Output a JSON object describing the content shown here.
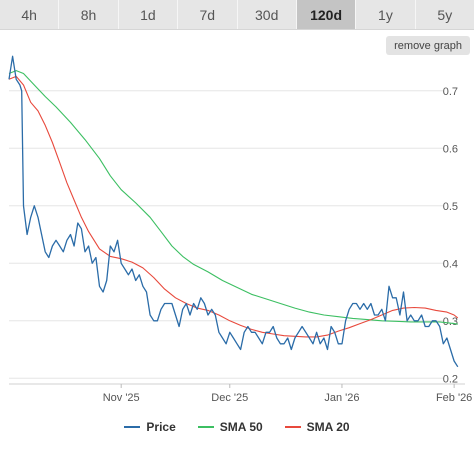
{
  "tabs": [
    {
      "label": "4h",
      "active": false
    },
    {
      "label": "8h",
      "active": false
    },
    {
      "label": "1d",
      "active": false
    },
    {
      "label": "7d",
      "active": false
    },
    {
      "label": "30d",
      "active": false
    },
    {
      "label": "120d",
      "active": true
    },
    {
      "label": "1y",
      "active": false
    },
    {
      "label": "5y",
      "active": false
    }
  ],
  "remove_graph_label": "remove graph",
  "colors": {
    "price": "#2b6ca8",
    "sma50": "#3cbf62",
    "sma20": "#e8493c",
    "grid": "#e6e6e6"
  },
  "chart_data": {
    "type": "line",
    "x_ticks": [
      {
        "t": 76,
        "label": "Nov '25"
      },
      {
        "t": 106,
        "label": "Dec '25"
      },
      {
        "t": 137,
        "label": "Jan '26"
      },
      {
        "t": 168,
        "label": "Feb '26"
      }
    ],
    "y_ticks": [
      0.2,
      0.3,
      0.4,
      0.5,
      0.6,
      0.7
    ],
    "ylim": [
      0.19,
      0.75
    ],
    "xlim": [
      45,
      171
    ],
    "legend_position": "bottom",
    "series": [
      {
        "name": "Price",
        "key": "price",
        "points": [
          [
            45,
            0.72
          ],
          [
            46,
            0.76
          ],
          [
            47,
            0.72
          ],
          [
            48,
            0.71
          ],
          [
            48.5,
            0.7
          ],
          [
            49,
            0.5
          ],
          [
            50,
            0.45
          ],
          [
            51,
            0.48
          ],
          [
            52,
            0.5
          ],
          [
            53,
            0.48
          ],
          [
            54,
            0.45
          ],
          [
            55,
            0.42
          ],
          [
            56,
            0.41
          ],
          [
            57,
            0.43
          ],
          [
            58,
            0.44
          ],
          [
            59,
            0.43
          ],
          [
            60,
            0.42
          ],
          [
            61,
            0.44
          ],
          [
            62,
            0.45
          ],
          [
            63,
            0.43
          ],
          [
            64,
            0.47
          ],
          [
            65,
            0.46
          ],
          [
            66,
            0.42
          ],
          [
            67,
            0.43
          ],
          [
            68,
            0.4
          ],
          [
            69,
            0.41
          ],
          [
            70,
            0.36
          ],
          [
            71,
            0.35
          ],
          [
            72,
            0.37
          ],
          [
            73,
            0.43
          ],
          [
            74,
            0.42
          ],
          [
            75,
            0.44
          ],
          [
            76,
            0.4
          ],
          [
            77,
            0.39
          ],
          [
            78,
            0.38
          ],
          [
            79,
            0.39
          ],
          [
            80,
            0.37
          ],
          [
            81,
            0.38
          ],
          [
            82,
            0.36
          ],
          [
            83,
            0.35
          ],
          [
            84,
            0.31
          ],
          [
            85,
            0.3
          ],
          [
            86,
            0.3
          ],
          [
            87,
            0.32
          ],
          [
            88,
            0.33
          ],
          [
            89,
            0.33
          ],
          [
            90,
            0.33
          ],
          [
            91,
            0.31
          ],
          [
            92,
            0.29
          ],
          [
            93,
            0.32
          ],
          [
            94,
            0.33
          ],
          [
            95,
            0.31
          ],
          [
            96,
            0.33
          ],
          [
            97,
            0.32
          ],
          [
            98,
            0.34
          ],
          [
            99,
            0.33
          ],
          [
            100,
            0.31
          ],
          [
            101,
            0.32
          ],
          [
            102,
            0.31
          ],
          [
            103,
            0.28
          ],
          [
            104,
            0.27
          ],
          [
            105,
            0.26
          ],
          [
            106,
            0.28
          ],
          [
            107,
            0.27
          ],
          [
            108,
            0.26
          ],
          [
            109,
            0.25
          ],
          [
            110,
            0.28
          ],
          [
            111,
            0.29
          ],
          [
            112,
            0.28
          ],
          [
            113,
            0.28
          ],
          [
            114,
            0.27
          ],
          [
            115,
            0.26
          ],
          [
            116,
            0.28
          ],
          [
            117,
            0.28
          ],
          [
            118,
            0.29
          ],
          [
            119,
            0.27
          ],
          [
            120,
            0.26
          ],
          [
            121,
            0.26
          ],
          [
            122,
            0.27
          ],
          [
            123,
            0.25
          ],
          [
            124,
            0.27
          ],
          [
            125,
            0.28
          ],
          [
            126,
            0.29
          ],
          [
            127,
            0.28
          ],
          [
            128,
            0.27
          ],
          [
            129,
            0.26
          ],
          [
            130,
            0.28
          ],
          [
            131,
            0.26
          ],
          [
            132,
            0.27
          ],
          [
            133,
            0.25
          ],
          [
            134,
            0.29
          ],
          [
            135,
            0.28
          ],
          [
            136,
            0.26
          ],
          [
            137,
            0.26
          ],
          [
            138,
            0.3
          ],
          [
            139,
            0.32
          ],
          [
            140,
            0.33
          ],
          [
            141,
            0.33
          ],
          [
            142,
            0.32
          ],
          [
            143,
            0.33
          ],
          [
            144,
            0.32
          ],
          [
            145,
            0.33
          ],
          [
            146,
            0.31
          ],
          [
            147,
            0.31
          ],
          [
            148,
            0.32
          ],
          [
            149,
            0.3
          ],
          [
            150,
            0.36
          ],
          [
            151,
            0.34
          ],
          [
            152,
            0.34
          ],
          [
            153,
            0.31
          ],
          [
            154,
            0.35
          ],
          [
            155,
            0.3
          ],
          [
            156,
            0.31
          ],
          [
            157,
            0.3
          ],
          [
            158,
            0.3
          ],
          [
            159,
            0.31
          ],
          [
            160,
            0.29
          ],
          [
            161,
            0.29
          ],
          [
            162,
            0.3
          ],
          [
            163,
            0.3
          ],
          [
            164,
            0.29
          ],
          [
            165,
            0.26
          ],
          [
            166,
            0.27
          ],
          [
            167,
            0.25
          ],
          [
            168,
            0.23
          ],
          [
            169,
            0.22
          ]
        ]
      },
      {
        "name": "SMA 50",
        "key": "sma50",
        "points": [
          [
            45,
            0.73
          ],
          [
            47,
            0.735
          ],
          [
            49,
            0.73
          ],
          [
            52,
            0.71
          ],
          [
            55,
            0.69
          ],
          [
            58,
            0.672
          ],
          [
            62,
            0.645
          ],
          [
            66,
            0.615
          ],
          [
            70,
            0.582
          ],
          [
            73,
            0.552
          ],
          [
            76,
            0.528
          ],
          [
            80,
            0.505
          ],
          [
            84,
            0.48
          ],
          [
            87,
            0.455
          ],
          [
            90,
            0.43
          ],
          [
            93,
            0.412
          ],
          [
            96,
            0.398
          ],
          [
            100,
            0.385
          ],
          [
            104,
            0.37
          ],
          [
            108,
            0.358
          ],
          [
            112,
            0.346
          ],
          [
            116,
            0.338
          ],
          [
            120,
            0.33
          ],
          [
            124,
            0.322
          ],
          [
            128,
            0.315
          ],
          [
            132,
            0.31
          ],
          [
            136,
            0.307
          ],
          [
            140,
            0.304
          ],
          [
            144,
            0.302
          ],
          [
            148,
            0.3
          ],
          [
            152,
            0.299
          ],
          [
            156,
            0.298
          ],
          [
            160,
            0.298
          ],
          [
            164,
            0.298
          ],
          [
            168,
            0.295
          ],
          [
            169,
            0.294
          ]
        ]
      },
      {
        "name": "SMA 20",
        "key": "sma20",
        "points": [
          [
            45,
            0.72
          ],
          [
            47,
            0.725
          ],
          [
            49,
            0.71
          ],
          [
            51,
            0.68
          ],
          [
            53,
            0.665
          ],
          [
            55,
            0.64
          ],
          [
            57,
            0.61
          ],
          [
            59,
            0.575
          ],
          [
            61,
            0.54
          ],
          [
            63,
            0.51
          ],
          [
            65,
            0.48
          ],
          [
            67,
            0.455
          ],
          [
            70,
            0.425
          ],
          [
            73,
            0.412
          ],
          [
            76,
            0.408
          ],
          [
            79,
            0.402
          ],
          [
            82,
            0.392
          ],
          [
            85,
            0.375
          ],
          [
            88,
            0.355
          ],
          [
            91,
            0.34
          ],
          [
            94,
            0.33
          ],
          [
            97,
            0.322
          ],
          [
            100,
            0.318
          ],
          [
            103,
            0.31
          ],
          [
            106,
            0.3
          ],
          [
            109,
            0.292
          ],
          [
            112,
            0.285
          ],
          [
            115,
            0.28
          ],
          [
            118,
            0.277
          ],
          [
            121,
            0.274
          ],
          [
            124,
            0.273
          ],
          [
            127,
            0.272
          ],
          [
            130,
            0.272
          ],
          [
            133,
            0.275
          ],
          [
            136,
            0.282
          ],
          [
            139,
            0.288
          ],
          [
            142,
            0.295
          ],
          [
            145,
            0.302
          ],
          [
            148,
            0.31
          ],
          [
            151,
            0.318
          ],
          [
            154,
            0.322
          ],
          [
            157,
            0.323
          ],
          [
            160,
            0.322
          ],
          [
            163,
            0.318
          ],
          [
            166,
            0.315
          ],
          [
            168,
            0.31
          ],
          [
            169,
            0.305
          ]
        ]
      }
    ]
  }
}
